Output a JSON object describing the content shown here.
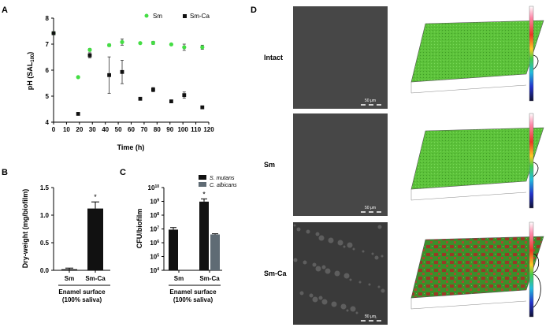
{
  "panel_letters": {
    "A": "A",
    "B": "B",
    "C": "C",
    "D": "D"
  },
  "chart_data": [
    {
      "id": "A",
      "type": "scatter",
      "title": "",
      "xlabel": "Time (h)",
      "ylabel_main": "pH (SAL",
      "ylabel_sub": "100",
      "ylabel_close": ")",
      "xlim": [
        0,
        120
      ],
      "ylim": [
        4,
        8
      ],
      "xticks": [
        0,
        10,
        20,
        30,
        40,
        50,
        60,
        70,
        80,
        90,
        100,
        110,
        120
      ],
      "yticks": [
        4,
        5,
        6,
        7,
        8
      ],
      "legend_position": "top-right",
      "series": [
        {
          "name": "Sm",
          "color": "#44dd44",
          "marker": "circle",
          "x": [
            0,
            19,
            28,
            43,
            53,
            67,
            77,
            91,
            101,
            115
          ],
          "y": [
            7.42,
            5.73,
            6.78,
            6.96,
            7.08,
            7.04,
            7.05,
            6.99,
            6.88,
            6.88
          ],
          "err": [
            0,
            0,
            0.05,
            0.05,
            0.12,
            0.03,
            0.06,
            0.03,
            0.12,
            0.08
          ]
        },
        {
          "name": "Sm-Ca",
          "color": "#111111",
          "marker": "square",
          "x": [
            0,
            19,
            28,
            43,
            53,
            67,
            77,
            91,
            101,
            115
          ],
          "y": [
            7.42,
            4.32,
            6.57,
            5.81,
            5.93,
            4.9,
            5.25,
            4.8,
            5.04,
            4.57
          ],
          "err": [
            0,
            0,
            0.1,
            0.7,
            0.45,
            0.05,
            0.08,
            0.05,
            0.12,
            0.03
          ]
        }
      ]
    },
    {
      "id": "B",
      "type": "bar",
      "xlabel_line1": "Enamel surface",
      "xlabel_line2": "(100% saliva)",
      "ylabel": "Dry-weight (mg/biofilm)",
      "ylim": [
        0,
        1.5
      ],
      "yticks": [
        "0.0",
        "0.5",
        "1.0",
        "1.5"
      ],
      "categories": [
        "Sm",
        "Sm-Ca"
      ],
      "values": [
        0.02,
        1.12
      ],
      "err": [
        0.02,
        0.12
      ],
      "annotations": [
        "",
        "*"
      ],
      "color": "#111111"
    },
    {
      "id": "C",
      "type": "bar",
      "scale": "log",
      "xlabel_line1": "Enamel surface",
      "xlabel_line2": "(100% saliva)",
      "ylabel": "CFU/biofilm",
      "ylim_exp": [
        4,
        10
      ],
      "ytick_base": "10",
      "ytick_exps": [
        "4",
        "5",
        "6",
        "7",
        "8",
        "9",
        "10"
      ],
      "categories": [
        "Sm",
        "Sm-Ca"
      ],
      "series": [
        {
          "name": "S. mutans",
          "color": "#111111",
          "values_exp": [
            6.95,
            8.98
          ],
          "err_exp": [
            0.15,
            0.2
          ]
        },
        {
          "name": "C. albicans",
          "color": "#5f6b74",
          "values_exp": [
            null,
            6.6
          ],
          "err_exp": [
            null,
            0.05
          ]
        }
      ],
      "annotations": [
        "",
        "*"
      ],
      "legend_position": "top-right"
    }
  ],
  "panel_D": {
    "rows": [
      {
        "label": "Intact",
        "scale_label": "50 μm",
        "surface": "green"
      },
      {
        "label": "Sm",
        "scale_label": "50 μm",
        "surface": "green"
      },
      {
        "label": "Sm-Ca",
        "scale_label": "50 μm",
        "surface": "mixed"
      }
    ]
  }
}
